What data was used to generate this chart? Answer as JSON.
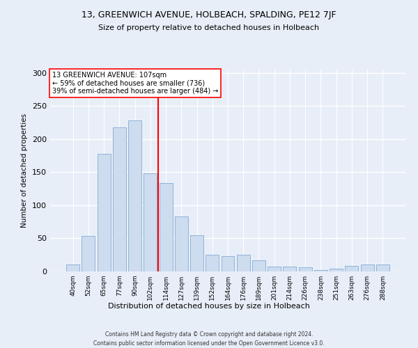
{
  "title1": "13, GREENWICH AVENUE, HOLBEACH, SPALDING, PE12 7JF",
  "title2": "Size of property relative to detached houses in Holbeach",
  "xlabel": "Distribution of detached houses by size in Holbeach",
  "ylabel": "Number of detached properties",
  "bar_labels": [
    "40sqm",
    "52sqm",
    "65sqm",
    "77sqm",
    "90sqm",
    "102sqm",
    "114sqm",
    "127sqm",
    "139sqm",
    "152sqm",
    "164sqm",
    "176sqm",
    "189sqm",
    "201sqm",
    "214sqm",
    "226sqm",
    "238sqm",
    "251sqm",
    "263sqm",
    "276sqm",
    "288sqm"
  ],
  "bar_values": [
    10,
    54,
    178,
    218,
    228,
    148,
    134,
    83,
    55,
    25,
    23,
    25,
    17,
    7,
    7,
    6,
    2,
    4,
    8,
    10,
    10
  ],
  "bar_color": "#cddcef",
  "bar_edge_color": "#8fb3d9",
  "vline_x": 5.5,
  "vline_color": "red",
  "annotation_text": "13 GREENWICH AVENUE: 107sqm\n← 59% of detached houses are smaller (736)\n39% of semi-detached houses are larger (484) →",
  "annotation_box_color": "white",
  "annotation_box_edge": "red",
  "ylim": [
    0,
    305
  ],
  "yticks": [
    0,
    50,
    100,
    150,
    200,
    250,
    300
  ],
  "footer1": "Contains HM Land Registry data © Crown copyright and database right 2024.",
  "footer2": "Contains public sector information licensed under the Open Government Licence v3.0.",
  "background_color": "#e8eef8",
  "plot_bg_color": "#e8eef8",
  "grid_color": "white"
}
